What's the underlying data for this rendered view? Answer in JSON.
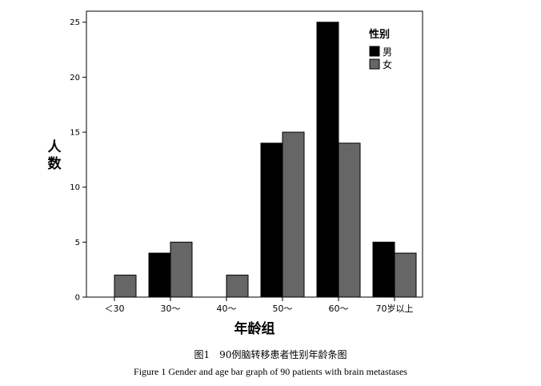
{
  "chart_data": {
    "type": "bar",
    "categories": [
      "＜30",
      "30～",
      "40～",
      "50～",
      "60～",
      "70岁以上"
    ],
    "series": [
      {
        "name": "男",
        "values": [
          0,
          4,
          0,
          14,
          25,
          5
        ],
        "color": "#000000"
      },
      {
        "name": "女",
        "values": [
          2,
          5,
          2,
          15,
          14,
          4
        ],
        "color": "#666666"
      }
    ],
    "title": "",
    "xlabel": "年龄组",
    "ylabel": "人数",
    "ylim": [
      0,
      26
    ],
    "yticks": [
      0,
      5,
      10,
      15,
      20,
      25
    ],
    "legend_title": "性别",
    "legend_position": "top-right",
    "grid": false
  },
  "caption": {
    "cn": "图1　90例脑转移患者性别年龄条图",
    "en": "Figure 1 Gender and age bar graph of 90 patients with brain metastases"
  }
}
